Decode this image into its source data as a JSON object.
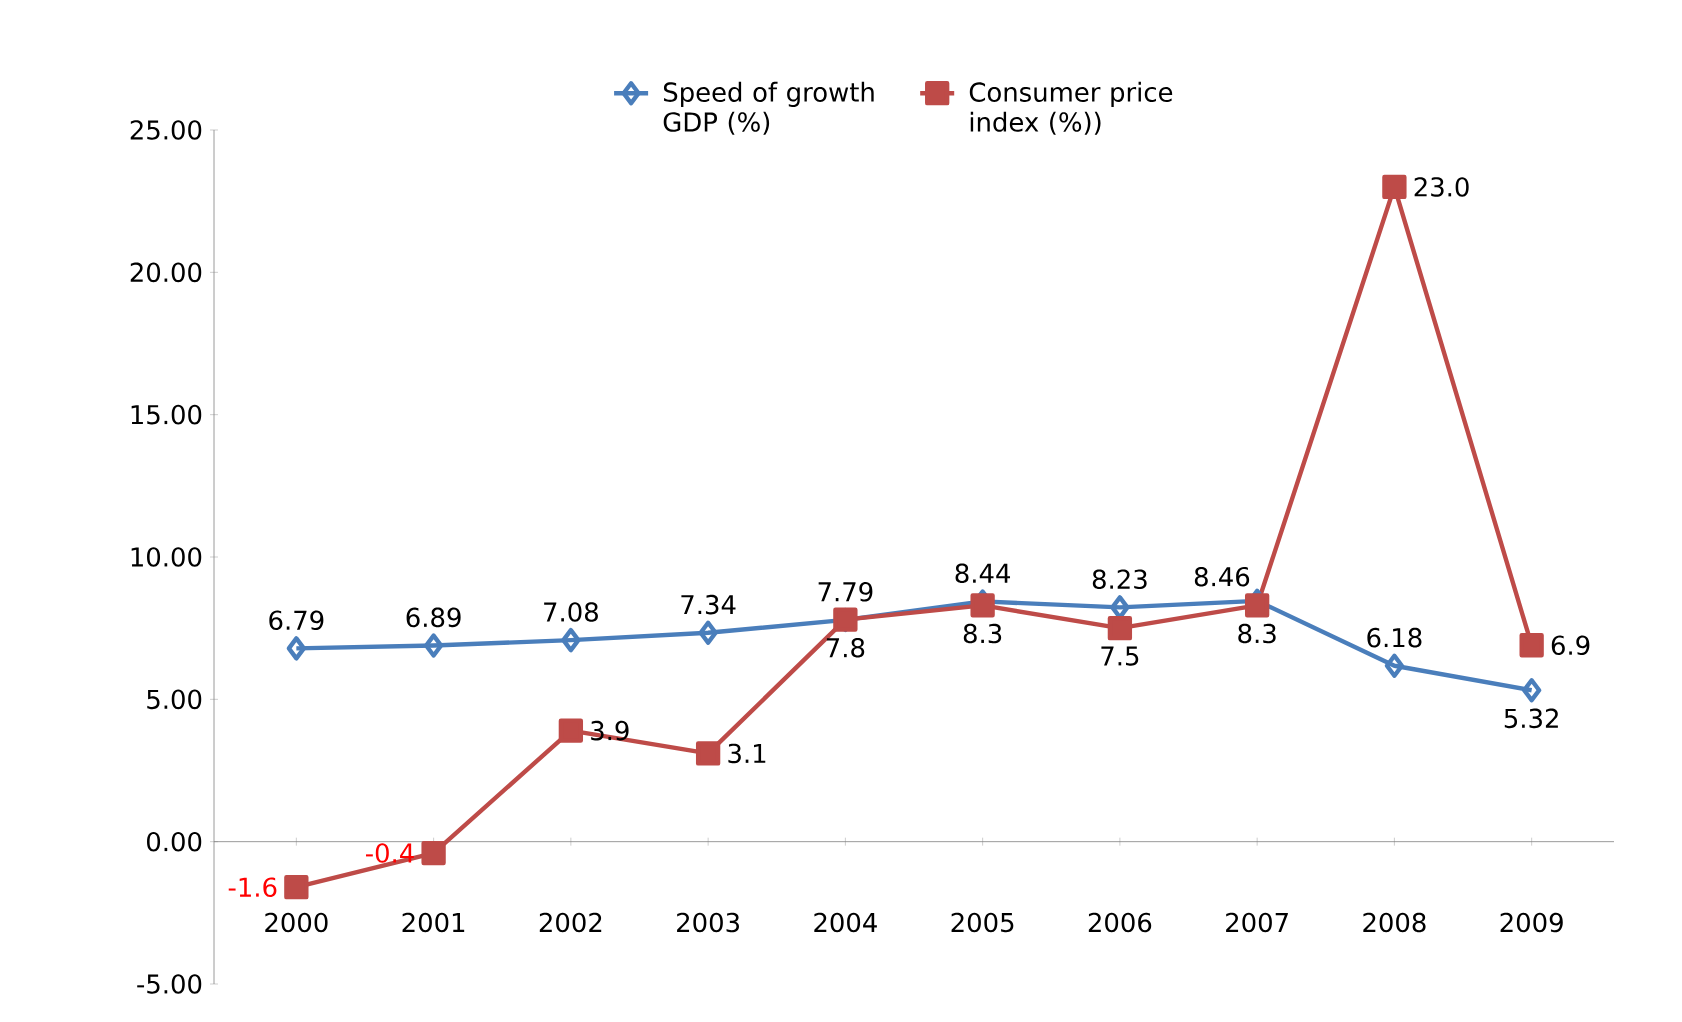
{
  "chart_data": {
    "type": "line",
    "categories": [
      "2000",
      "2001",
      "2002",
      "2003",
      "2004",
      "2005",
      "2006",
      "2007",
      "2008",
      "2009"
    ],
    "ylim": [
      -5,
      25
    ],
    "yticks": [
      {
        "value": -5,
        "label": "-5.00"
      },
      {
        "value": 0,
        "label": "0.00"
      },
      {
        "value": 5,
        "label": "5.00"
      },
      {
        "value": 10,
        "label": "10.00"
      },
      {
        "value": 15,
        "label": "15.00"
      },
      {
        "value": 20,
        "label": "20.00"
      },
      {
        "value": 25,
        "label": "25.00"
      }
    ],
    "legend": "top",
    "line_style": "solid",
    "series": [
      {
        "name": "Speed of growth GDP (%)",
        "color": "#4a7ebb",
        "marker": "diamond",
        "values": [
          6.79,
          6.89,
          7.08,
          7.34,
          7.79,
          8.44,
          8.23,
          8.46,
          6.18,
          5.32
        ],
        "value_labels": [
          "6.79",
          "6.89",
          "7.08",
          "7.34",
          "7.79",
          "8.44",
          "8.23",
          "8.46",
          "6.18",
          "5.32"
        ]
      },
      {
        "name": "Consumer price index (%))",
        "color": "#be4b48",
        "marker": "square",
        "values": [
          -1.6,
          -0.4,
          3.9,
          3.1,
          7.8,
          8.3,
          7.5,
          8.3,
          23.0,
          6.9
        ],
        "value_labels": [
          "-1.6",
          "-0.4",
          "3.9",
          "3.1",
          "7.8",
          "8.3",
          "7.5",
          "8.3",
          "23.0",
          "6.9"
        ]
      }
    ]
  }
}
